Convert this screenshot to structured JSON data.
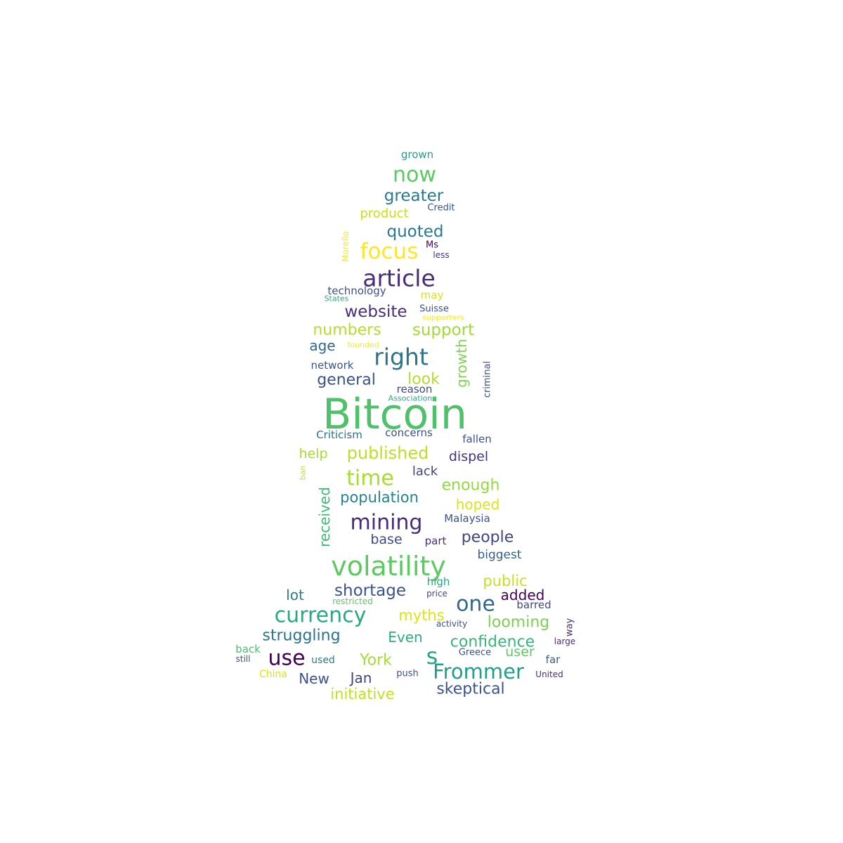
{
  "word_cloud": {
    "words": [
      {
        "text": "Bitcoin",
        "color": "#4fc16b"
      },
      {
        "text": "volatility",
        "color": "#5ec962"
      },
      {
        "text": "article",
        "color": "#472c7a"
      },
      {
        "text": "right",
        "color": "#2c738e"
      },
      {
        "text": "mining",
        "color": "#472c7a"
      },
      {
        "text": "focus",
        "color": "#fde725"
      },
      {
        "text": "currency",
        "color": "#25ab82"
      },
      {
        "text": "now",
        "color": "#5ec962"
      },
      {
        "text": "time",
        "color": "#a8db34"
      },
      {
        "text": "one",
        "color": "#31688e"
      },
      {
        "text": "Frommer",
        "color": "#1fa088"
      },
      {
        "text": "use",
        "color": "#440154"
      },
      {
        "text": "s",
        "color": "#22a884"
      },
      {
        "text": "greater",
        "color": "#2a788e"
      },
      {
        "text": "quoted",
        "color": "#2a788e"
      },
      {
        "text": "website",
        "color": "#472d7b"
      },
      {
        "text": "support",
        "color": "#a2da37"
      },
      {
        "text": "numbers",
        "color": "#b5de2b"
      },
      {
        "text": "published",
        "color": "#bddf26"
      },
      {
        "text": "shortage",
        "color": "#3b528b"
      },
      {
        "text": "confidence",
        "color": "#35b779"
      },
      {
        "text": "struggling",
        "color": "#2c728e"
      },
      {
        "text": "looming",
        "color": "#7ad151"
      },
      {
        "text": "general",
        "color": "#3b528b"
      },
      {
        "text": "enough",
        "color": "#95d840"
      },
      {
        "text": "people",
        "color": "#414487"
      },
      {
        "text": "public",
        "color": "#c8e020"
      },
      {
        "text": "population",
        "color": "#26828e"
      },
      {
        "text": "initiative",
        "color": "#c2df23"
      },
      {
        "text": "skeptical",
        "color": "#3b528b"
      },
      {
        "text": "York",
        "color": "#a8db34"
      },
      {
        "text": "New",
        "color": "#3b528b"
      },
      {
        "text": "Jan",
        "color": "#414487"
      },
      {
        "text": "Even",
        "color": "#29af7f"
      },
      {
        "text": "myths",
        "color": "#dde318"
      },
      {
        "text": "added",
        "color": "#440154"
      },
      {
        "text": "look",
        "color": "#b5de2b"
      },
      {
        "text": "age",
        "color": "#31688e"
      },
      {
        "text": "growth",
        "color": "#7fd34e"
      },
      {
        "text": "received",
        "color": "#3cbb75"
      },
      {
        "text": "lot",
        "color": "#287d8e"
      },
      {
        "text": "help",
        "color": "#a8db34"
      },
      {
        "text": "hoped",
        "color": "#dde318"
      },
      {
        "text": "base",
        "color": "#3e4a89"
      },
      {
        "text": "dispel",
        "color": "#46337e"
      },
      {
        "text": "product",
        "color": "#c8e020"
      },
      {
        "text": "lack",
        "color": "#414487"
      },
      {
        "text": "biggest",
        "color": "#355f8d"
      },
      {
        "text": "user",
        "color": "#5ec962"
      },
      {
        "text": "technology",
        "color": "#3b528b"
      },
      {
        "text": "network",
        "color": "#3b528b"
      },
      {
        "text": "Criticism",
        "color": "#2c728e"
      },
      {
        "text": "concerns",
        "color": "#3b528b"
      },
      {
        "text": "fallen",
        "color": "#3b528b"
      },
      {
        "text": "Malaysia",
        "color": "#3b528b"
      },
      {
        "text": "part",
        "color": "#472c7a"
      },
      {
        "text": "high",
        "color": "#22a884"
      },
      {
        "text": "barred",
        "color": "#404688"
      },
      {
        "text": "used",
        "color": "#2a788e"
      },
      {
        "text": "far",
        "color": "#355f8d"
      },
      {
        "text": "push",
        "color": "#3b528b"
      },
      {
        "text": "China",
        "color": "#dde318"
      },
      {
        "text": "back",
        "color": "#4ac16d"
      },
      {
        "text": "Greece",
        "color": "#3b528b"
      },
      {
        "text": "reason",
        "color": "#404688"
      },
      {
        "text": "grown",
        "color": "#2a9d8f"
      },
      {
        "text": "Credit",
        "color": "#3b528b"
      },
      {
        "text": "may",
        "color": "#dde318"
      },
      {
        "text": "Suisse",
        "color": "#3b528b"
      },
      {
        "text": "criminal",
        "color": "#3b528b"
      },
      {
        "text": "way",
        "color": "#472c7a"
      },
      {
        "text": "Ms",
        "color": "#440154"
      },
      {
        "text": "less",
        "color": "#46337e"
      },
      {
        "text": "price",
        "color": "#404688"
      },
      {
        "text": "restricted",
        "color": "#5ec962"
      },
      {
        "text": "activity",
        "color": "#3b528b"
      },
      {
        "text": "large",
        "color": "#472c7a"
      },
      {
        "text": "still",
        "color": "#3b528b"
      },
      {
        "text": "United",
        "color": "#472c7a"
      },
      {
        "text": "Morello",
        "color": "#fde725"
      },
      {
        "text": "States",
        "color": "#25ab82"
      },
      {
        "text": "supporters",
        "color": "#fde725"
      },
      {
        "text": "founded",
        "color": "#fde725"
      },
      {
        "text": "Association",
        "color": "#25ab82"
      },
      {
        "text": "ban",
        "color": "#c8e020"
      }
    ]
  }
}
